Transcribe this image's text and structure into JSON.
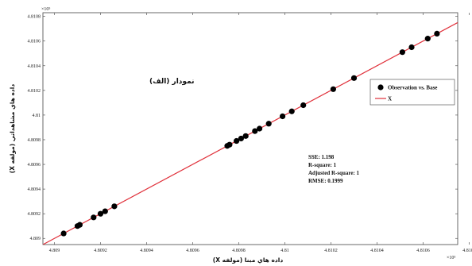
{
  "chart_data": {
    "type": "scatter",
    "title": "",
    "panel_label": "نمودار (الف)",
    "xlabel": "داده هاي مبنا (مولفه X)",
    "ylabel": "داده هاي مشاهداتي (مولفه X)",
    "x_exponent": "×10⁵",
    "y_exponent": "×10⁵",
    "xlim": [
      4.80895,
      4.81075
    ],
    "ylim": [
      4.80895,
      4.81083
    ],
    "x_ticks": [
      4.809,
      4.8092,
      4.8094,
      4.8096,
      4.8098,
      4.81,
      4.8102,
      4.8104,
      4.8106,
      4.8108
    ],
    "x_tick_labels": [
      "4.809",
      "4.8092",
      "4.8094",
      "4.8096",
      "4.8098",
      "4.81",
      "4.8102",
      "4.8104",
      "4.8106",
      "4.8108"
    ],
    "y_ticks": [
      4.809,
      4.8092,
      4.8094,
      4.8096,
      4.8098,
      4.81,
      4.8102,
      4.8104,
      4.8106,
      4.8108
    ],
    "y_tick_labels": [
      "4.809",
      "4.8092",
      "4.8094",
      "4.8096",
      "4.8098",
      "4.81",
      "4.8102",
      "4.8104",
      "4.8106",
      "4.8108"
    ],
    "grid": false,
    "legend_position": "top-right",
    "series": [
      {
        "name": "Observation vs. Base",
        "kind": "scatter",
        "color": "#000000",
        "points": [
          [
            4.80904,
            4.80904
          ],
          [
            4.8091,
            4.8091
          ],
          [
            4.80911,
            4.80911
          ],
          [
            4.80917,
            4.80917
          ],
          [
            4.8092,
            4.8092
          ],
          [
            4.80922,
            4.80922
          ],
          [
            4.80926,
            4.80926
          ],
          [
            4.80975,
            4.80975
          ],
          [
            4.80976,
            4.80976
          ],
          [
            4.80979,
            4.80979
          ],
          [
            4.80981,
            4.80981
          ],
          [
            4.80983,
            4.80983
          ],
          [
            4.80987,
            4.80987
          ],
          [
            4.80989,
            4.80989
          ],
          [
            4.80993,
            4.80993
          ],
          [
            4.80999,
            4.80999
          ],
          [
            4.81003,
            4.81003
          ],
          [
            4.81008,
            4.81008
          ],
          [
            4.81021,
            4.81021
          ],
          [
            4.8103,
            4.8103
          ],
          [
            4.81051,
            4.81051
          ],
          [
            4.81055,
            4.81055
          ],
          [
            4.81062,
            4.81062
          ],
          [
            4.81066,
            4.81066
          ]
        ]
      },
      {
        "name": "X",
        "kind": "line",
        "color": "#e0303a",
        "points": [
          [
            4.80895,
            4.80895
          ],
          [
            4.81075,
            4.81075
          ]
        ]
      }
    ],
    "stats": [
      "SSE: 1.198",
      "R-square: 1",
      "Adjusted R-square: 1",
      "RMSE: 0.1999"
    ]
  }
}
